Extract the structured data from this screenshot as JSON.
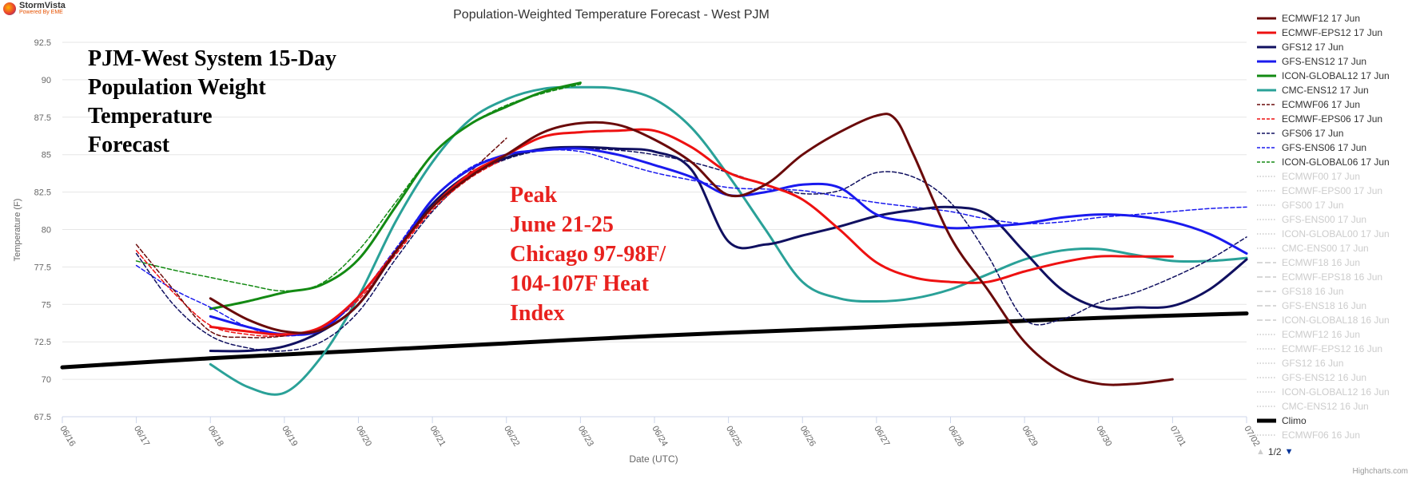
{
  "brand": {
    "name": "StormVista",
    "tagline": "Powered By EME"
  },
  "credits": "Highcharts.com",
  "overlay": {
    "title": "PJM-West System 15-Day\nPopulation Weight\nTemperature\nForecast",
    "peak": "Peak\nJune 21-25\nChicago 97-98F/\n104-107F Heat\nIndex"
  },
  "legend_nav": "1/2",
  "chart_data": {
    "type": "line",
    "title": "Population-Weighted Temperature Forecast - West PJM",
    "xlabel": "Date (UTC)",
    "ylabel": "Temperature (F)",
    "x_ticks": [
      "06/16",
      "06/17",
      "06/18",
      "06/19",
      "06/20",
      "06/21",
      "06/22",
      "06/23",
      "06/24",
      "06/25",
      "06/26",
      "06/27",
      "06/28",
      "06/29",
      "06/30",
      "07/01",
      "07/02"
    ],
    "y_ticks": [
      "67.5",
      "70",
      "72.5",
      "75",
      "77.5",
      "80",
      "82.5",
      "85",
      "87.5",
      "90",
      "92.5"
    ],
    "xlim": [
      0,
      16
    ],
    "ylim": [
      67.5,
      92.5
    ],
    "x_units": "days after 06/16 00 UTC",
    "grid": "horizontal",
    "legend": "right",
    "series": [
      {
        "name": "ECMWF12 17 Jun",
        "color": "#6a0a0a",
        "dash": "solid",
        "width": 3,
        "points": [
          [
            2,
            75.4
          ],
          [
            2.5,
            74
          ],
          [
            3,
            73.2
          ],
          [
            3.5,
            73.3
          ],
          [
            4,
            75
          ],
          [
            4.5,
            78.5
          ],
          [
            5,
            81.5
          ],
          [
            5.5,
            83.5
          ],
          [
            6,
            85
          ],
          [
            6.5,
            86.5
          ],
          [
            7,
            87.1
          ],
          [
            7.5,
            87
          ],
          [
            8,
            86
          ],
          [
            8.5,
            84.5
          ],
          [
            9,
            82.3
          ],
          [
            9.5,
            83
          ],
          [
            10,
            85
          ],
          [
            10.5,
            86.5
          ],
          [
            11,
            87.6
          ],
          [
            11.25,
            87.4
          ],
          [
            11.5,
            85
          ],
          [
            12,
            79.5
          ],
          [
            12.5,
            76
          ],
          [
            13,
            72.5
          ],
          [
            13.5,
            70.5
          ],
          [
            14,
            69.7
          ],
          [
            14.5,
            69.7
          ],
          [
            15,
            70
          ]
        ]
      },
      {
        "name": "ECMWF-EPS12 17 Jun",
        "color": "#ee1111",
        "dash": "solid",
        "width": 3,
        "points": [
          [
            2,
            73.5
          ],
          [
            2.5,
            73.2
          ],
          [
            3,
            73
          ],
          [
            3.5,
            73.5
          ],
          [
            4,
            75.5
          ],
          [
            4.5,
            78.5
          ],
          [
            5,
            81.5
          ],
          [
            5.5,
            83.7
          ],
          [
            6,
            85
          ],
          [
            6.5,
            86.2
          ],
          [
            7,
            86.5
          ],
          [
            7.5,
            86.6
          ],
          [
            8,
            86.6
          ],
          [
            8.5,
            85.5
          ],
          [
            9,
            83.8
          ],
          [
            9.5,
            83
          ],
          [
            10,
            82
          ],
          [
            10.5,
            80
          ],
          [
            11,
            77.8
          ],
          [
            11.5,
            76.8
          ],
          [
            12,
            76.5
          ],
          [
            12.5,
            76.5
          ],
          [
            13,
            77.2
          ],
          [
            13.5,
            77.8
          ],
          [
            14,
            78.2
          ],
          [
            14.5,
            78.2
          ],
          [
            15,
            78.2
          ]
        ]
      },
      {
        "name": "GFS12 17 Jun",
        "color": "#101060",
        "dash": "solid",
        "width": 3,
        "points": [
          [
            2,
            71.9
          ],
          [
            2.5,
            71.9
          ],
          [
            3,
            72.2
          ],
          [
            3.5,
            73.2
          ],
          [
            4,
            75
          ],
          [
            4.5,
            78.5
          ],
          [
            5,
            81.7
          ],
          [
            5.5,
            83.7
          ],
          [
            6,
            84.8
          ],
          [
            6.5,
            85.4
          ],
          [
            7,
            85.5
          ],
          [
            7.5,
            85.4
          ],
          [
            8,
            85.2
          ],
          [
            8.5,
            84
          ],
          [
            9,
            79.2
          ],
          [
            9.5,
            79
          ],
          [
            10,
            79.6
          ],
          [
            10.5,
            80.2
          ],
          [
            11,
            80.9
          ],
          [
            11.5,
            81.3
          ],
          [
            12,
            81.5
          ],
          [
            12.5,
            81
          ],
          [
            13,
            78.5
          ],
          [
            13.5,
            76
          ],
          [
            14,
            74.8
          ],
          [
            14.5,
            74.8
          ],
          [
            15,
            74.9
          ],
          [
            15.5,
            76
          ],
          [
            16,
            78
          ]
        ]
      },
      {
        "name": "GFS-ENS12 17 Jun",
        "color": "#1a1aee",
        "dash": "solid",
        "width": 3,
        "points": [
          [
            2,
            74.2
          ],
          [
            2.5,
            73.5
          ],
          [
            3,
            73
          ],
          [
            3.5,
            73.3
          ],
          [
            4,
            75.5
          ],
          [
            4.5,
            78.5
          ],
          [
            5,
            82
          ],
          [
            5.5,
            84
          ],
          [
            6,
            85
          ],
          [
            6.5,
            85.3
          ],
          [
            7,
            85.4
          ],
          [
            7.5,
            85
          ],
          [
            8,
            84.3
          ],
          [
            8.5,
            83.5
          ],
          [
            9,
            82.3
          ],
          [
            9.5,
            82.5
          ],
          [
            10,
            83
          ],
          [
            10.5,
            82.8
          ],
          [
            11,
            81
          ],
          [
            11.5,
            80.5
          ],
          [
            12,
            80.1
          ],
          [
            12.5,
            80.2
          ],
          [
            13,
            80.4
          ],
          [
            13.5,
            80.8
          ],
          [
            14,
            81
          ],
          [
            14.5,
            80.9
          ],
          [
            15,
            80.5
          ],
          [
            15.5,
            79.7
          ],
          [
            16,
            78.4
          ]
        ]
      },
      {
        "name": "ICON-GLOBAL12 17 Jun",
        "color": "#138a13",
        "dash": "solid",
        "width": 3,
        "points": [
          [
            2,
            74.7
          ],
          [
            2.5,
            75.2
          ],
          [
            3,
            75.8
          ],
          [
            3.5,
            76.3
          ],
          [
            4,
            78
          ],
          [
            4.5,
            81.5
          ],
          [
            5,
            85
          ],
          [
            5.5,
            87
          ],
          [
            6,
            88.2
          ],
          [
            6.5,
            89.2
          ],
          [
            7,
            89.8
          ]
        ]
      },
      {
        "name": "CMC-ENS12 17 Jun",
        "color": "#2aa198",
        "dash": "solid",
        "width": 3,
        "points": [
          [
            2,
            71
          ],
          [
            2.5,
            69.5
          ],
          [
            3,
            69.1
          ],
          [
            3.5,
            71.5
          ],
          [
            4,
            75.5
          ],
          [
            4.5,
            80.5
          ],
          [
            5,
            84.5
          ],
          [
            5.5,
            87.3
          ],
          [
            6,
            88.7
          ],
          [
            6.5,
            89.4
          ],
          [
            7,
            89.5
          ],
          [
            7.5,
            89.4
          ],
          [
            8,
            88.7
          ],
          [
            8.5,
            86.8
          ],
          [
            9,
            83.6
          ],
          [
            9.5,
            80
          ],
          [
            10,
            76.5
          ],
          [
            10.5,
            75.4
          ],
          [
            11,
            75.2
          ],
          [
            11.5,
            75.4
          ],
          [
            12,
            76
          ],
          [
            12.5,
            77
          ],
          [
            13,
            78
          ],
          [
            13.5,
            78.6
          ],
          [
            14,
            78.7
          ],
          [
            14.5,
            78.3
          ],
          [
            15,
            77.9
          ],
          [
            15.5,
            77.9
          ],
          [
            16,
            78.1
          ]
        ]
      },
      {
        "name": "ECMWF06 17 Jun",
        "color": "#6a0a0a",
        "dash": "dashed",
        "width": 1.5,
        "points": [
          [
            1,
            79
          ],
          [
            1.5,
            76
          ],
          [
            2,
            73.2
          ],
          [
            2.5,
            72.8
          ],
          [
            3,
            72.9
          ],
          [
            3.5,
            73.5
          ],
          [
            4,
            75.5
          ],
          [
            4.5,
            78.5
          ],
          [
            5,
            81.5
          ],
          [
            5.5,
            83.8
          ],
          [
            6,
            86.1
          ]
        ]
      },
      {
        "name": "ECMWF-EPS06 17 Jun",
        "color": "#ee1111",
        "dash": "dashed",
        "width": 1.5,
        "points": [
          [
            1,
            78.6
          ],
          [
            1.5,
            75.8
          ],
          [
            2,
            73.6
          ],
          [
            2.5,
            73
          ],
          [
            3,
            72.9
          ],
          [
            3.5,
            73.4
          ],
          [
            4,
            75.3
          ],
          [
            4.5,
            78.3
          ],
          [
            5,
            81.3
          ],
          [
            5.5,
            83.4
          ],
          [
            6,
            84.8
          ]
        ]
      },
      {
        "name": "GFS06 17 Jun",
        "color": "#101060",
        "dash": "dashed",
        "width": 1.5,
        "points": [
          [
            1,
            78.4
          ],
          [
            1.5,
            75
          ],
          [
            2,
            72.9
          ],
          [
            2.5,
            72.1
          ],
          [
            3,
            71.9
          ],
          [
            3.5,
            72.5
          ],
          [
            4,
            74.5
          ],
          [
            4.5,
            78
          ],
          [
            5,
            81.2
          ],
          [
            5.5,
            83.5
          ],
          [
            6,
            84.7
          ],
          [
            6.5,
            85.3
          ],
          [
            7,
            85.4
          ],
          [
            7.5,
            85.3
          ],
          [
            8,
            85
          ],
          [
            8.5,
            84.5
          ],
          [
            9,
            83.8
          ],
          [
            9.5,
            83
          ],
          [
            10,
            82.4
          ],
          [
            10.5,
            82.6
          ],
          [
            11,
            83.8
          ],
          [
            11.5,
            83.5
          ],
          [
            12,
            81.8
          ],
          [
            12.5,
            78.3
          ],
          [
            13,
            74
          ],
          [
            13.5,
            74
          ],
          [
            14,
            75.1
          ],
          [
            14.5,
            75.8
          ],
          [
            15,
            76.8
          ],
          [
            15.5,
            78
          ],
          [
            16,
            79.5
          ]
        ]
      },
      {
        "name": "GFS-ENS06 17 Jun",
        "color": "#1a1aee",
        "dash": "dashed",
        "width": 1.5,
        "points": [
          [
            1,
            77.6
          ],
          [
            1.5,
            76
          ],
          [
            2,
            74.8
          ],
          [
            2.5,
            73.5
          ],
          [
            3,
            72.9
          ],
          [
            3.5,
            73.4
          ],
          [
            4,
            75.5
          ],
          [
            4.5,
            78.7
          ],
          [
            5,
            82
          ],
          [
            5.5,
            84.1
          ],
          [
            6,
            85
          ],
          [
            6.5,
            85.3
          ],
          [
            7,
            85.2
          ],
          [
            7.5,
            84.5
          ],
          [
            8,
            83.8
          ],
          [
            8.5,
            83.3
          ],
          [
            9,
            82.8
          ],
          [
            9.5,
            82.7
          ],
          [
            10,
            82.6
          ],
          [
            10.5,
            82.2
          ],
          [
            11,
            81.8
          ],
          [
            11.5,
            81.5
          ],
          [
            12,
            81.2
          ],
          [
            12.5,
            80.7
          ],
          [
            13,
            80.4
          ],
          [
            13.5,
            80.5
          ],
          [
            14,
            80.8
          ],
          [
            14.5,
            81
          ],
          [
            15,
            81.2
          ],
          [
            15.5,
            81.4
          ],
          [
            16,
            81.5
          ]
        ]
      },
      {
        "name": "ICON-GLOBAL06 17 Jun",
        "color": "#138a13",
        "dash": "dashed",
        "width": 1.5,
        "points": [
          [
            1,
            77.9
          ],
          [
            1.5,
            77.3
          ],
          [
            2,
            76.8
          ],
          [
            2.5,
            76.3
          ],
          [
            3,
            75.9
          ],
          [
            3.5,
            76.4
          ],
          [
            4,
            78.6
          ],
          [
            4.5,
            81.8
          ],
          [
            5,
            85
          ],
          [
            5.5,
            87
          ],
          [
            6,
            88.3
          ],
          [
            6.5,
            89.1
          ],
          [
            7,
            89.7
          ]
        ]
      },
      {
        "name": "Climo",
        "color": "#000000",
        "dash": "solid",
        "width": 5,
        "points": [
          [
            0,
            70.8
          ],
          [
            2,
            71.4
          ],
          [
            4,
            71.9
          ],
          [
            6,
            72.4
          ],
          [
            8,
            72.9
          ],
          [
            10,
            73.3
          ],
          [
            12,
            73.7
          ],
          [
            14,
            74.1
          ],
          [
            16,
            74.4
          ]
        ]
      }
    ],
    "hidden_series": [
      "ECMWF00 17 Jun",
      "ECMWF-EPS00 17 Jun",
      "GFS00 17 Jun",
      "GFS-ENS00 17 Jun",
      "ICON-GLOBAL00 17 Jun",
      "CMC-ENS00 17 Jun",
      "ECMWF18 16 Jun",
      "ECMWF-EPS18 16 Jun",
      "GFS18 16 Jun",
      "GFS-ENS18 16 Jun",
      "ICON-GLOBAL18 16 Jun",
      "ECMWF12 16 Jun",
      "ECMWF-EPS12 16 Jun",
      "GFS12 16 Jun",
      "GFS-ENS12 16 Jun",
      "ICON-GLOBAL12 16 Jun",
      "CMC-ENS12 16 Jun",
      "ECMWF06 16 Jun"
    ]
  }
}
